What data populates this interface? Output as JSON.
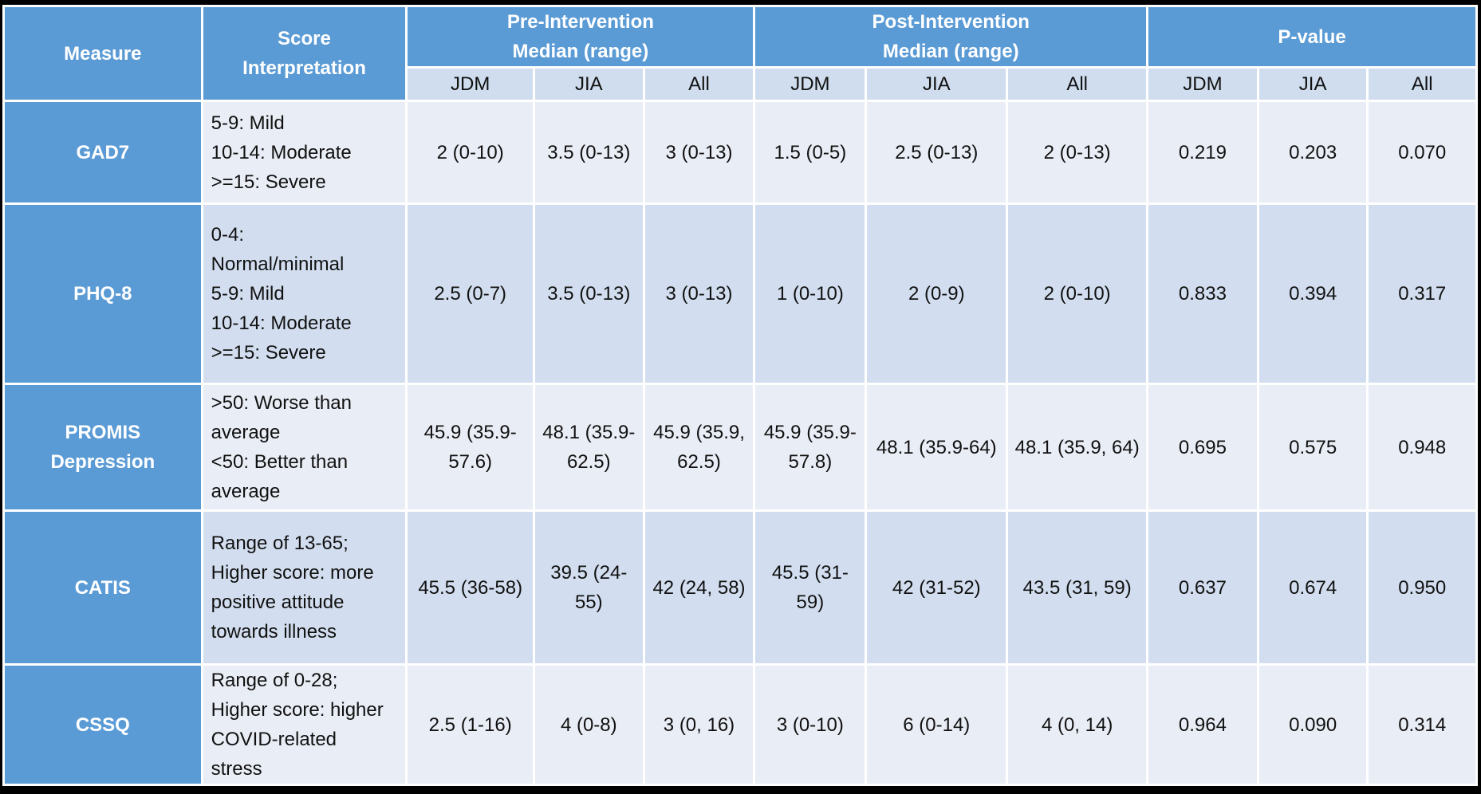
{
  "header": {
    "measure": "Measure",
    "interpretation": [
      "Score",
      "Interpretation"
    ],
    "pre": [
      "Pre-Intervention",
      "Median (range)"
    ],
    "post": [
      "Post-Intervention",
      "Median (range)"
    ],
    "pvalue": "P-value",
    "subgroups": [
      "JDM",
      "JIA",
      "All"
    ]
  },
  "rows": [
    {
      "measure": [
        "GAD7"
      ],
      "interpretation": [
        "5-9: Mild",
        "10-14: Moderate",
        ">=15: Severe"
      ],
      "pre": [
        "2 (0-10)",
        "3.5 (0-13)",
        "3 (0-13)"
      ],
      "post": [
        "1.5 (0-5)",
        "2.5 (0-13)",
        "2 (0-13)"
      ],
      "p": [
        "0.219",
        "0.203",
        "0.070"
      ]
    },
    {
      "measure": [
        "PHQ-8"
      ],
      "interpretation": [
        "0-4:",
        "Normal/minimal",
        "5-9: Mild",
        "10-14: Moderate",
        ">=15: Severe"
      ],
      "pre": [
        "2.5 (0-7)",
        "3.5 (0-13)",
        "3 (0-13)"
      ],
      "post": [
        "1 (0-10)",
        "2 (0-9)",
        "2 (0-10)"
      ],
      "p": [
        "0.833",
        "0.394",
        "0.317"
      ]
    },
    {
      "measure": [
        "PROMIS",
        "Depression"
      ],
      "interpretation": [
        ">50: Worse than",
        "average",
        "<50: Better than",
        "average"
      ],
      "pre": [
        "45.9 (35.9-57.6)",
        "48.1 (35.9-62.5)",
        "45.9 (35.9, 62.5)"
      ],
      "post": [
        "45.9 (35.9-57.8)",
        "48.1 (35.9-64)",
        "48.1 (35.9, 64)"
      ],
      "p": [
        "0.695",
        "0.575",
        "0.948"
      ]
    },
    {
      "measure": [
        "CATIS"
      ],
      "interpretation": [
        "Range of 13-65;",
        "Higher score: more",
        "positive attitude",
        "towards illness"
      ],
      "pre": [
        "45.5 (36-58)",
        "39.5 (24-55)",
        "42 (24, 58)"
      ],
      "post": [
        "45.5 (31-59)",
        "42 (31-52)",
        "43.5 (31, 59)"
      ],
      "p": [
        "0.637",
        "0.674",
        "0.950"
      ]
    },
    {
      "measure": [
        "CSSQ"
      ],
      "interpretation": [
        "Range of 0-28;",
        "Higher score: higher",
        "COVID-related",
        "stress"
      ],
      "pre": [
        "2.5 (1-16)",
        "4 (0-8)",
        "3 (0, 16)"
      ],
      "post": [
        "3 (0-10)",
        "6 (0-14)",
        "4 (0, 14)"
      ],
      "p": [
        "0.964",
        "0.090",
        "0.314"
      ]
    }
  ],
  "colors": {
    "header": "#5B9BD5",
    "subheader": "#CFDDEE",
    "row_light": "#E9EDF5",
    "row_dark": "#D2DEEF"
  }
}
